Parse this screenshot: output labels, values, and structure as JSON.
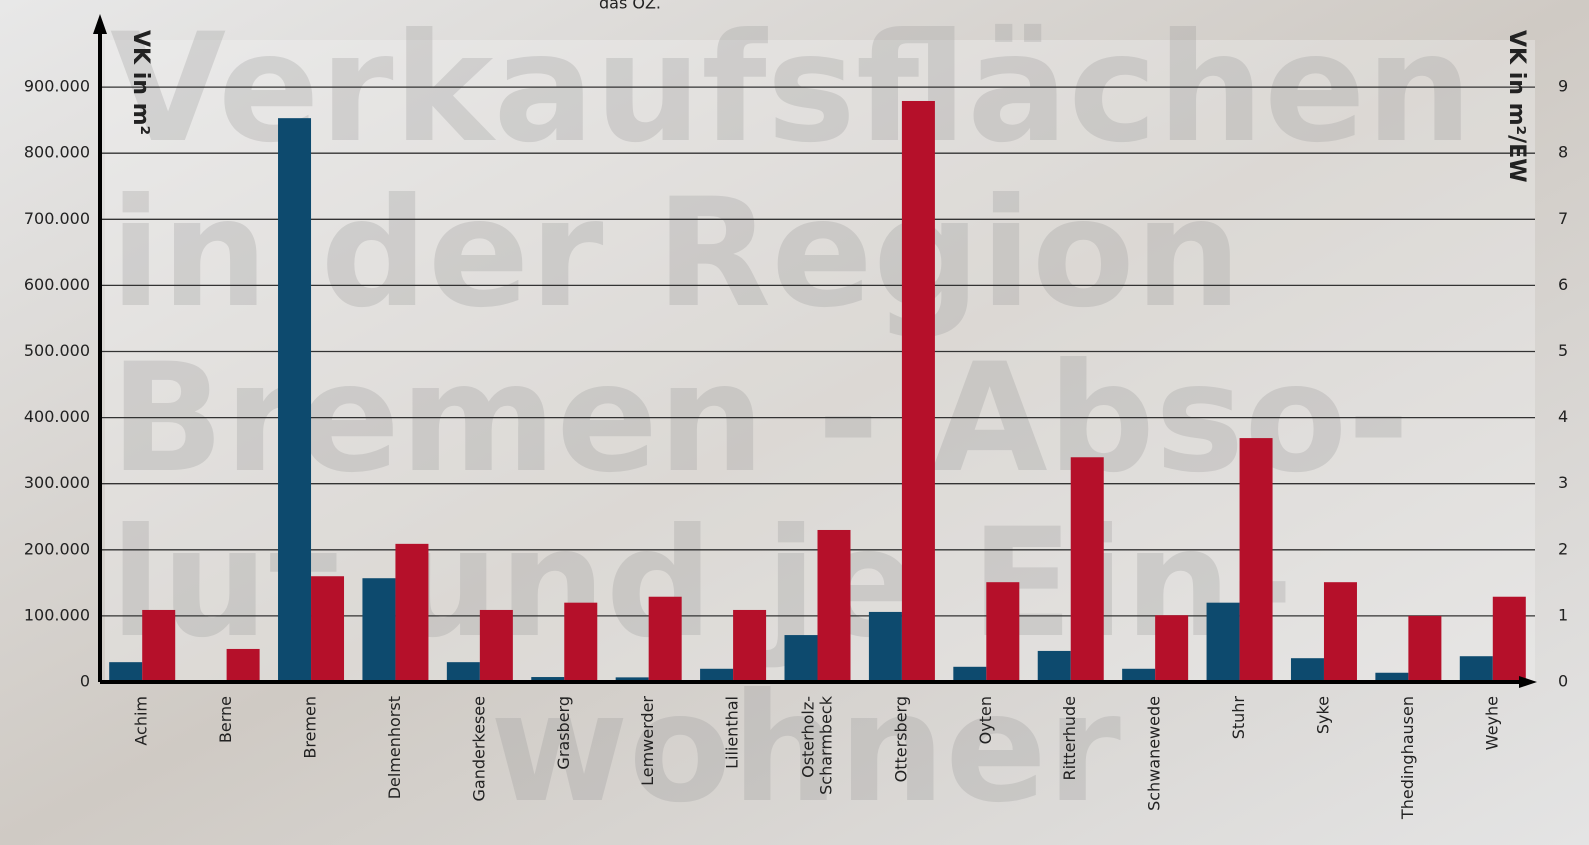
{
  "chart_data": {
    "type": "bar",
    "note": "das OZ.",
    "watermark": [
      "Verkaufsflächen",
      "in der Region",
      "Bremen - Abso-",
      "lut und je Ein-",
      "wohner"
    ],
    "y_label": "VK in m²",
    "y2_label": "VK in m²/EW",
    "categories": [
      "Achim",
      "Berne",
      "Bremen",
      "Delmenhorst",
      "Ganderkesee",
      "Grasberg",
      "Lemwerder",
      "Lilienthal",
      "Osterholz-\nScharmbeck",
      "Ottersberg",
      "Oyten",
      "Ritterhude",
      "Schwanewede",
      "Stuhr",
      "Syke",
      "Thedinghausen",
      "Weyhe"
    ],
    "series": [
      {
        "color": "#0d4a6e",
        "values": [
          30000,
          0,
          853000,
          157000,
          30000,
          7500,
          7000,
          20000,
          71000,
          106000,
          23000,
          47000,
          20000,
          120000,
          36000,
          14000,
          39000
        ]
      },
      {
        "color": "#b5102a",
        "axis": "y2",
        "values": [
          1.09,
          0.5,
          1.6,
          2.09,
          1.09,
          1.2,
          1.29,
          1.09,
          2.3,
          8.79,
          1.51,
          3.4,
          1.01,
          3.69,
          1.51,
          1.0,
          1.29
        ]
      }
    ],
    "ylim": [
      0,
      1000000
    ],
    "yticks": [
      0,
      {
        "value": 100000,
        "label": "100.000"
      },
      {
        "value": 200000,
        "label": "200.000"
      },
      {
        "value": 300000,
        "label": "300.000"
      },
      {
        "value": 400000,
        "label": "400.000"
      },
      {
        "value": 500000,
        "label": "500.000"
      },
      {
        "value": 600000,
        "label": "600.000"
      },
      {
        "value": 700000,
        "label": "700.000"
      },
      {
        "value": 800000,
        "label": "800.000"
      },
      {
        "value": 900000,
        "label": "900.000"
      }
    ],
    "y2lim": [
      0,
      10
    ],
    "y2ticks": [
      0,
      1,
      2,
      3,
      4,
      5,
      6,
      7,
      8,
      9
    ],
    "grid": true
  }
}
